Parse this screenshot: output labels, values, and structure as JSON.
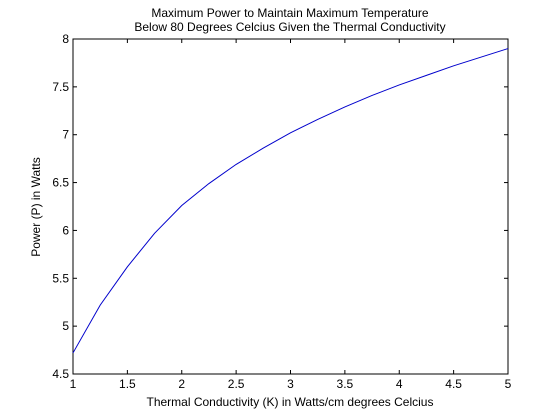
{
  "chart_data": {
    "type": "line",
    "title_lines": [
      "Maximum Power to Maintain Maximum Temperature",
      "Below 80 Degrees Celcius Given the Thermal Conductivity"
    ],
    "xlabel": "Thermal Conductivity (K) in Watts/cm degrees Celcius",
    "ylabel": "Power (P) in Watts",
    "xlim": [
      1,
      5
    ],
    "ylim": [
      4.5,
      8
    ],
    "xticks": [
      1,
      1.5,
      2,
      2.5,
      3,
      3.5,
      4,
      4.5,
      5
    ],
    "xtick_labels": [
      "1",
      "1.5",
      "2",
      "2.5",
      "3",
      "3.5",
      "4",
      "4.5",
      "5"
    ],
    "yticks": [
      4.5,
      5,
      5.5,
      6,
      6.5,
      7,
      7.5,
      8
    ],
    "ytick_labels": [
      "4.5",
      "5",
      "5.5",
      "6",
      "6.5",
      "7",
      "7.5",
      "8"
    ],
    "grid": false,
    "line_color": "#0000cc",
    "series": [
      {
        "x": [
          1,
          1.25,
          1.5,
          1.75,
          2,
          2.25,
          2.5,
          2.75,
          3,
          3.25,
          3.5,
          3.75,
          4,
          4.25,
          4.5,
          4.75,
          5
        ],
        "y": [
          4.72,
          5.22,
          5.62,
          5.97,
          6.26,
          6.49,
          6.69,
          6.86,
          7.02,
          7.16,
          7.29,
          7.41,
          7.52,
          7.62,
          7.72,
          7.81,
          7.9
        ]
      }
    ]
  }
}
